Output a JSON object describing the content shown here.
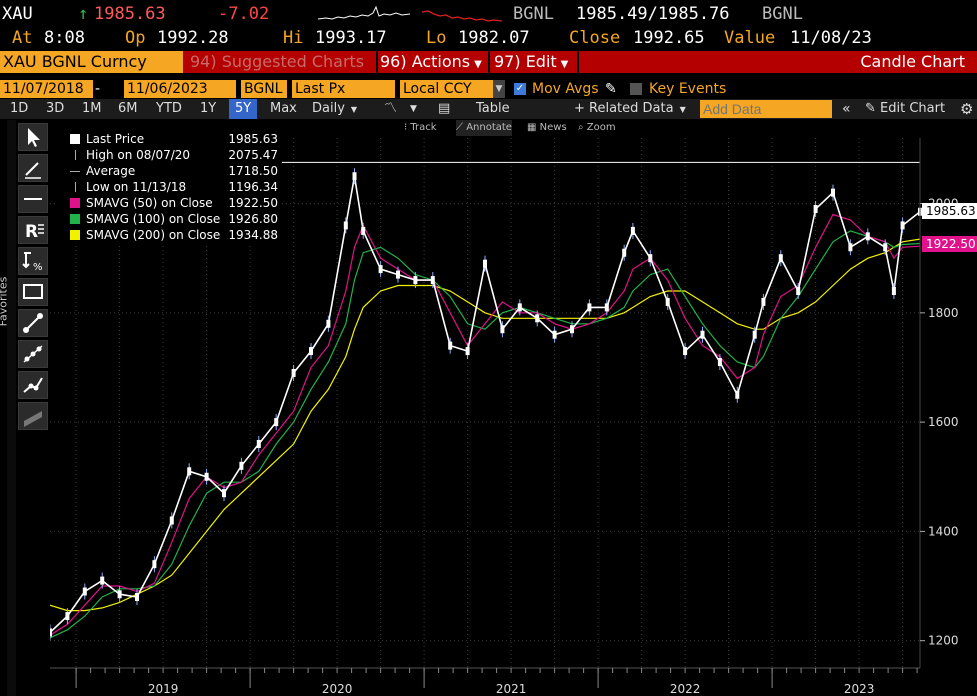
{
  "header": {
    "ticker": "XAU",
    "arrow": "↑",
    "last": "1985.63",
    "change": "-7.02",
    "source1": "BGNL",
    "bid_ask": "1985.49/1985.76",
    "source2": "BGNL",
    "at_label": "At",
    "at_time": "8:08",
    "op_label": "Op",
    "op": "1992.28",
    "hi_label": "Hi",
    "hi": "1993.17",
    "lo_label": "Lo",
    "lo": "1982.07",
    "close_label": "Close",
    "close": "1992.65",
    "value_label": "Value",
    "value_date": "11/08/23"
  },
  "toolbar": {
    "security": "XAU BGNL Curncy",
    "suggested": "94) Suggested Charts",
    "actions": "96) Actions",
    "edit": "97) Edit",
    "chart_name": "Candle Chart",
    "date_from": "11/07/2018",
    "date_to": "11/06/2023",
    "source": "BGNL",
    "field": "Last Px",
    "currency": "Local CCY",
    "mov_avgs": "Mov Avgs",
    "key_events": "Key Events"
  },
  "ranges": [
    "1D",
    "3D",
    "1M",
    "6M",
    "YTD",
    "1Y",
    "5Y",
    "Max"
  ],
  "selected_range": "5Y",
  "periodicity": "Daily",
  "table_label": "Table",
  "related_data": "Related Data",
  "add_data_placeholder": "Add Data",
  "edit_chart": "Edit Chart",
  "annotations": [
    "Track",
    "Annotate",
    "News",
    "Zoom"
  ],
  "favorites_label": "Favorites",
  "legend": [
    {
      "label": "Last Price",
      "value": "1985.63",
      "color": "#ffffff",
      "kind": "box"
    },
    {
      "label": "High on 08/07/20",
      "value": "2075.47",
      "color": "#aaaaaa",
      "kind": "tick"
    },
    {
      "label": "Average",
      "value": "1718.50",
      "color": "#aaaaaa",
      "kind": "dash"
    },
    {
      "label": "Low on 11/13/18",
      "value": "1196.34",
      "color": "#aaaaaa",
      "kind": "tick"
    },
    {
      "label": "SMAVG (50)  on Close",
      "value": "1922.50",
      "color": "#e0118a",
      "kind": "box"
    },
    {
      "label": "SMAVG (100)  on Close",
      "value": "1926.80",
      "color": "#21b24b",
      "kind": "box"
    },
    {
      "label": "SMAVG (200)  on Close",
      "value": "1934.88",
      "color": "#f2f200",
      "kind": "box"
    }
  ],
  "chart_data": {
    "type": "line",
    "title": "Candle Chart",
    "ylim": [
      1150,
      2120
    ],
    "yticks": [
      "1200",
      "1400",
      "1600",
      "1800",
      "2000"
    ],
    "xticks": [
      "2019",
      "2020",
      "2021",
      "2022",
      "2023"
    ],
    "high_line": 2075.47,
    "last_label": "1985.63",
    "sma50_label": "1922.50",
    "x": [
      2018.85,
      2018.95,
      2019.05,
      2019.15,
      2019.25,
      2019.35,
      2019.45,
      2019.55,
      2019.65,
      2019.75,
      2019.85,
      2019.95,
      2020.05,
      2020.15,
      2020.25,
      2020.35,
      2020.45,
      2020.55,
      2020.6,
      2020.65,
      2020.75,
      2020.85,
      2020.95,
      2021.05,
      2021.15,
      2021.25,
      2021.35,
      2021.45,
      2021.55,
      2021.65,
      2021.75,
      2021.85,
      2021.95,
      2022.05,
      2022.15,
      2022.2,
      2022.3,
      2022.4,
      2022.5,
      2022.6,
      2022.7,
      2022.8,
      2022.9,
      2022.95,
      2023.05,
      2023.15,
      2023.25,
      2023.35,
      2023.45,
      2023.55,
      2023.65,
      2023.7,
      2023.75,
      2023.85
    ],
    "series": [
      {
        "name": "Last Price",
        "color": "#ffffff",
        "values": [
          1215,
          1245,
          1290,
          1310,
          1285,
          1280,
          1340,
          1420,
          1510,
          1500,
          1470,
          1520,
          1560,
          1600,
          1690,
          1730,
          1780,
          1960,
          2050,
          1950,
          1880,
          1870,
          1860,
          1860,
          1740,
          1730,
          1890,
          1770,
          1810,
          1790,
          1760,
          1770,
          1810,
          1810,
          1910,
          1950,
          1900,
          1820,
          1730,
          1760,
          1710,
          1650,
          1760,
          1820,
          1900,
          1840,
          1990,
          2020,
          1920,
          1940,
          1920,
          1840,
          1960,
          1985
        ]
      },
      {
        "name": "SMAVG (50) on Close",
        "color": "#e0118a",
        "values": [
          1210,
          1230,
          1265,
          1300,
          1300,
          1290,
          1305,
          1380,
          1460,
          1500,
          1480,
          1490,
          1540,
          1580,
          1620,
          1700,
          1740,
          1840,
          1920,
          1960,
          1900,
          1880,
          1860,
          1860,
          1800,
          1740,
          1780,
          1820,
          1800,
          1800,
          1780,
          1770,
          1780,
          1800,
          1840,
          1880,
          1900,
          1860,
          1790,
          1740,
          1720,
          1680,
          1700,
          1760,
          1830,
          1850,
          1920,
          1980,
          1970,
          1940,
          1930,
          1900,
          1920,
          1922
        ]
      },
      {
        "name": "SMAVG (100) on Close",
        "color": "#21b24b",
        "values": [
          1205,
          1220,
          1245,
          1280,
          1295,
          1295,
          1300,
          1340,
          1410,
          1470,
          1490,
          1490,
          1510,
          1560,
          1600,
          1660,
          1710,
          1780,
          1860,
          1910,
          1920,
          1900,
          1870,
          1860,
          1830,
          1780,
          1770,
          1800,
          1810,
          1800,
          1790,
          1780,
          1780,
          1790,
          1810,
          1840,
          1870,
          1880,
          1830,
          1780,
          1740,
          1710,
          1700,
          1720,
          1790,
          1830,
          1880,
          1930,
          1950,
          1940,
          1930,
          1920,
          1925,
          1927
        ]
      },
      {
        "name": "SMAVG (200) on Close",
        "color": "#f2f200",
        "values": [
          1265,
          1255,
          1255,
          1260,
          1270,
          1285,
          1300,
          1320,
          1360,
          1400,
          1440,
          1470,
          1500,
          1530,
          1560,
          1620,
          1660,
          1720,
          1770,
          1810,
          1840,
          1850,
          1850,
          1850,
          1840,
          1820,
          1800,
          1790,
          1790,
          1790,
          1790,
          1790,
          1790,
          1790,
          1800,
          1810,
          1830,
          1840,
          1840,
          1820,
          1800,
          1780,
          1770,
          1770,
          1790,
          1800,
          1820,
          1850,
          1880,
          1900,
          1910,
          1920,
          1930,
          1935
        ]
      }
    ]
  }
}
